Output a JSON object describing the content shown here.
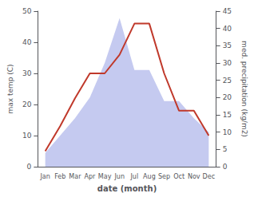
{
  "chart_data": {
    "type": "line",
    "categories": [
      "Jan",
      "Feb",
      "Mar",
      "Apr",
      "May",
      "Jun",
      "Jul",
      "Aug",
      "Sep",
      "Oct",
      "Nov",
      "Dec"
    ],
    "xlabel": "date (month)",
    "ylabel": "max temp (C)",
    "y2label": "med. precipitation (kg/m2)",
    "series": [
      {
        "type": "area",
        "axis": "y2",
        "color": "#c5caf0",
        "values": [
          4,
          9,
          14,
          20,
          30,
          43,
          28,
          28,
          19,
          19,
          14,
          10
        ]
      },
      {
        "type": "line",
        "color": "#c0392b",
        "values": [
          5,
          13,
          22,
          30,
          30,
          36,
          46,
          46,
          30,
          18,
          18,
          10
        ]
      }
    ],
    "ylim": [
      0,
      50
    ],
    "yticks": [
      0,
      10,
      20,
      30,
      40,
      50
    ],
    "y2lim": [
      0,
      45
    ],
    "y2ticks": [
      0,
      5,
      10,
      15,
      20,
      25,
      30,
      35,
      40,
      45
    ],
    "grid": false
  }
}
